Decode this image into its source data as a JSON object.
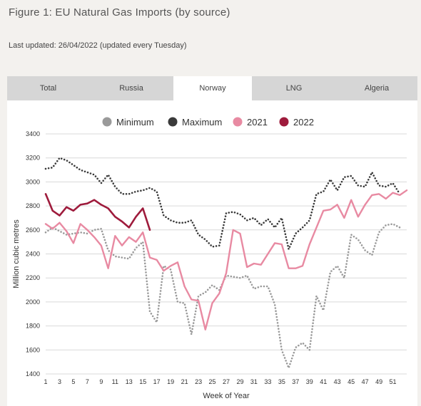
{
  "page": {
    "title": "Figure 1: EU Natural Gas Imports (by source)",
    "updated": "Last updated: 26/04/2022 (updated every Tuesday)"
  },
  "tabs": [
    {
      "label": "Total",
      "active": false
    },
    {
      "label": "Russia",
      "active": false
    },
    {
      "label": "Norway",
      "active": true
    },
    {
      "label": "LNG",
      "active": false
    },
    {
      "label": "Algeria",
      "active": false
    }
  ],
  "colors": {
    "minimum": "#9a9a9a",
    "maximum": "#3a3a3a",
    "y2021": "#e88aa2",
    "y2022": "#9e1b3c",
    "grid": "#d9d9d9",
    "active_tab": "#ffffff",
    "tab_bar": "#d6d6d6"
  },
  "chart_data": {
    "type": "line",
    "xlabel": "Week of Year",
    "ylabel": "Million cubic metres",
    "xlim": [
      1,
      53
    ],
    "ylim": [
      1400,
      3400
    ],
    "xticks": [
      1,
      3,
      5,
      7,
      9,
      11,
      13,
      15,
      17,
      19,
      21,
      23,
      25,
      27,
      29,
      31,
      33,
      35,
      37,
      39,
      41,
      43,
      45,
      47,
      49,
      51
    ],
    "yticks": [
      1400,
      1600,
      1800,
      2000,
      2200,
      2400,
      2600,
      2800,
      3000,
      3200,
      3400
    ],
    "grid": true,
    "legend_position": "top",
    "series": [
      {
        "name": "Minimum",
        "style": "dotted",
        "x": [
          1,
          2,
          3,
          4,
          5,
          6,
          7,
          8,
          9,
          10,
          11,
          12,
          13,
          14,
          15,
          16,
          17,
          18,
          19,
          20,
          21,
          22,
          23,
          24,
          25,
          26,
          27,
          28,
          29,
          30,
          31,
          32,
          33,
          34,
          35,
          36,
          37,
          38,
          39,
          40,
          41,
          42,
          43,
          44,
          45,
          46,
          47,
          48,
          49,
          50,
          51,
          52
        ],
        "values": [
          2580,
          2620,
          2590,
          2560,
          2570,
          2580,
          2570,
          2600,
          2610,
          2430,
          2380,
          2370,
          2360,
          2450,
          2500,
          1920,
          1830,
          2300,
          2270,
          2000,
          1990,
          1730,
          2050,
          2080,
          2140,
          2100,
          2220,
          2210,
          2200,
          2220,
          2110,
          2130,
          2130,
          1980,
          1600,
          1450,
          1620,
          1660,
          1600,
          2050,
          1930,
          2250,
          2300,
          2200,
          2560,
          2520,
          2430,
          2390,
          2580,
          2640,
          2650,
          2620
        ]
      },
      {
        "name": "Maximum",
        "style": "dotted",
        "x": [
          1,
          2,
          3,
          4,
          5,
          6,
          7,
          8,
          9,
          10,
          11,
          12,
          13,
          14,
          15,
          16,
          17,
          18,
          19,
          20,
          21,
          22,
          23,
          24,
          25,
          26,
          27,
          28,
          29,
          30,
          31,
          32,
          33,
          34,
          35,
          36,
          37,
          38,
          39,
          40,
          41,
          42,
          43,
          44,
          45,
          46,
          47,
          48,
          49,
          50,
          51,
          52
        ],
        "values": [
          3110,
          3120,
          3200,
          3180,
          3140,
          3100,
          3080,
          3060,
          2990,
          3060,
          2960,
          2900,
          2900,
          2920,
          2930,
          2950,
          2920,
          2720,
          2680,
          2660,
          2660,
          2680,
          2560,
          2520,
          2460,
          2470,
          2740,
          2750,
          2730,
          2680,
          2700,
          2640,
          2690,
          2620,
          2700,
          2440,
          2570,
          2620,
          2680,
          2900,
          2920,
          3020,
          2930,
          3040,
          3050,
          2970,
          2960,
          3080,
          2970,
          2960,
          2990,
          2900
        ]
      },
      {
        "name": "2021",
        "style": "solid",
        "x": [
          1,
          2,
          3,
          4,
          5,
          6,
          7,
          8,
          9,
          10,
          11,
          12,
          13,
          14,
          15,
          16,
          17,
          18,
          19,
          20,
          21,
          22,
          23,
          24,
          25,
          26,
          27,
          28,
          29,
          30,
          31,
          32,
          33,
          34,
          35,
          36,
          37,
          38,
          39,
          40,
          41,
          42,
          43,
          44,
          45,
          46,
          47,
          48,
          49,
          50,
          51,
          52,
          53
        ],
        "values": [
          2650,
          2610,
          2660,
          2590,
          2490,
          2650,
          2600,
          2540,
          2470,
          2280,
          2550,
          2470,
          2540,
          2500,
          2580,
          2370,
          2350,
          2260,
          2300,
          2330,
          2130,
          2020,
          2010,
          1770,
          1990,
          2070,
          2240,
          2600,
          2570,
          2290,
          2320,
          2310,
          2400,
          2490,
          2480,
          2280,
          2280,
          2300,
          2480,
          2620,
          2760,
          2770,
          2810,
          2700,
          2850,
          2710,
          2810,
          2890,
          2900,
          2860,
          2910,
          2890,
          2930
        ]
      },
      {
        "name": "2022",
        "style": "solid",
        "x": [
          1,
          2,
          3,
          4,
          5,
          6,
          7,
          8,
          9,
          10,
          11,
          12,
          13,
          14,
          15,
          16
        ],
        "values": [
          2900,
          2760,
          2720,
          2790,
          2760,
          2810,
          2820,
          2850,
          2810,
          2780,
          2710,
          2670,
          2620,
          2710,
          2780,
          2600
        ]
      }
    ]
  }
}
